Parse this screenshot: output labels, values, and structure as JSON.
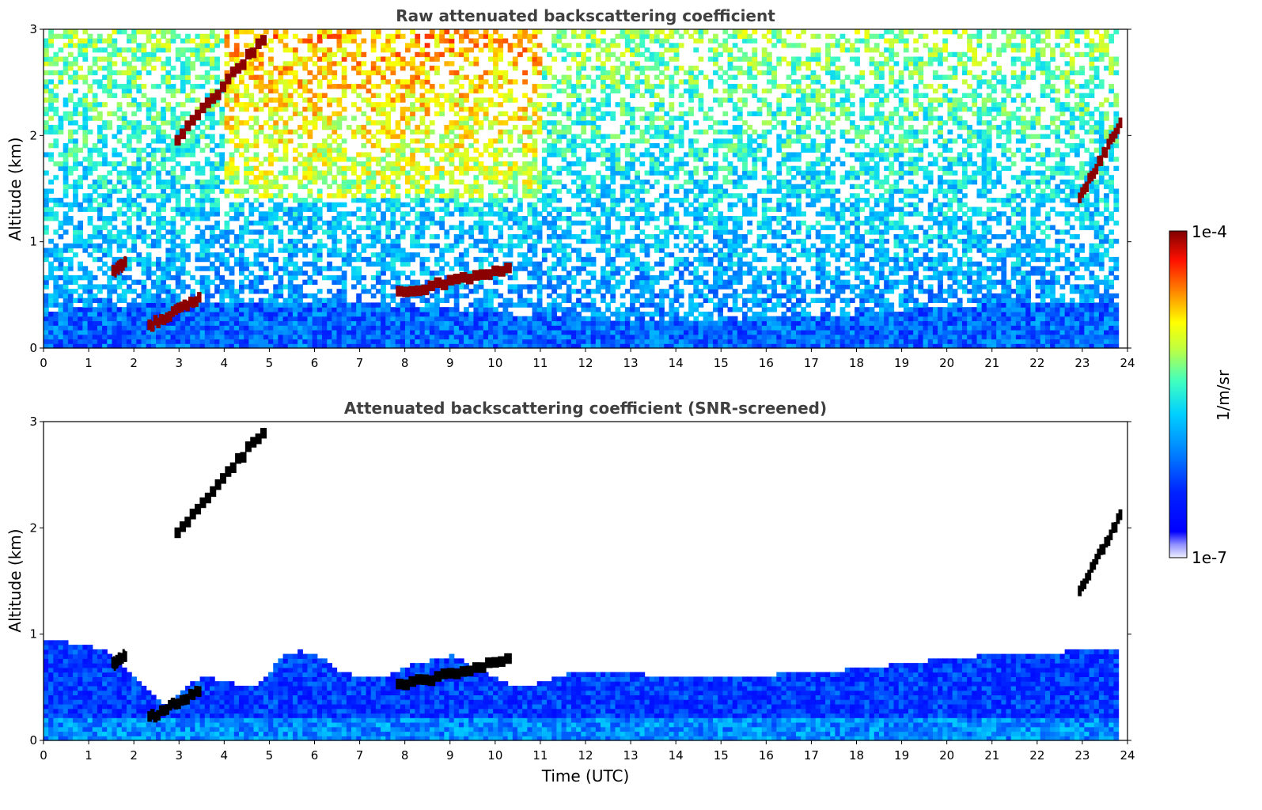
{
  "chart_data": [
    {
      "type": "heatmap",
      "title": "Raw attenuated backscattering coefficient",
      "xlabel": "",
      "ylabel": "Altitude (km)",
      "xlim": [
        0,
        24
      ],
      "ylim": [
        0,
        3
      ],
      "xticks": [
        "0",
        "1",
        "2",
        "3",
        "4",
        "5",
        "6",
        "7",
        "8",
        "9",
        "10",
        "11",
        "12",
        "13",
        "14",
        "15",
        "16",
        "17",
        "18",
        "19",
        "20",
        "21",
        "22",
        "23",
        "24"
      ],
      "yticks": [
        "0",
        "1",
        "2",
        "3"
      ],
      "data_end_hour": 23.8,
      "colorscale": "jet (white-masked low values)",
      "features": [
        {
          "x": [
            2.9,
            4.8
          ],
          "y": [
            1.95,
            2.9
          ]
        },
        {
          "x": [
            1.5,
            1.8
          ],
          "y": [
            0.7,
            0.8
          ]
        },
        {
          "x": [
            2.3,
            3.4
          ],
          "y": [
            0.2,
            0.45
          ]
        },
        {
          "x": [
            7.8,
            10.2
          ],
          "y": [
            0.5,
            0.75
          ]
        },
        {
          "x": [
            22.9,
            23.8
          ],
          "y": [
            1.4,
            2.1
          ]
        }
      ]
    },
    {
      "type": "heatmap",
      "title": "Attenuated backscattering coefficient (SNR-screened)",
      "xlabel": "Time (UTC)",
      "ylabel": "Altitude (km)",
      "xlim": [
        0,
        24
      ],
      "ylim": [
        0,
        3
      ],
      "xticks": [
        "0",
        "1",
        "2",
        "3",
        "4",
        "5",
        "6",
        "7",
        "8",
        "9",
        "10",
        "11",
        "12",
        "13",
        "14",
        "15",
        "16",
        "17",
        "18",
        "19",
        "20",
        "21",
        "22",
        "23",
        "24"
      ],
      "yticks": [
        "0",
        "1",
        "2",
        "3"
      ],
      "data_end_hour": 23.8,
      "boundary_layer_top_km": [
        [
          0,
          0.95
        ],
        [
          0.5,
          0.92
        ],
        [
          1,
          0.88
        ],
        [
          1.3,
          0.85
        ],
        [
          1.6,
          0.75
        ],
        [
          2,
          0.6
        ],
        [
          2.3,
          0.45
        ],
        [
          2.6,
          0.32
        ],
        [
          2.9,
          0.42
        ],
        [
          3.2,
          0.55
        ],
        [
          3.6,
          0.6
        ],
        [
          4,
          0.55
        ],
        [
          4.4,
          0.5
        ],
        [
          4.8,
          0.55
        ],
        [
          5.2,
          0.78
        ],
        [
          5.6,
          0.85
        ],
        [
          6,
          0.8
        ],
        [
          6.5,
          0.65
        ],
        [
          7,
          0.6
        ],
        [
          7.5,
          0.6
        ],
        [
          8,
          0.7
        ],
        [
          8.5,
          0.75
        ],
        [
          9,
          0.8
        ],
        [
          9.5,
          0.68
        ],
        [
          10,
          0.58
        ],
        [
          10.5,
          0.5
        ],
        [
          11,
          0.55
        ],
        [
          11.5,
          0.62
        ],
        [
          12,
          0.65
        ],
        [
          13,
          0.63
        ],
        [
          14,
          0.6
        ],
        [
          15,
          0.6
        ],
        [
          16,
          0.62
        ],
        [
          17,
          0.63
        ],
        [
          18,
          0.68
        ],
        [
          19,
          0.72
        ],
        [
          20,
          0.78
        ],
        [
          21,
          0.8
        ],
        [
          22,
          0.82
        ],
        [
          23,
          0.85
        ],
        [
          23.8,
          0.85
        ]
      ]
    }
  ],
  "colorbar": {
    "label": "1/m/sr",
    "max_label": "1e-4",
    "min_label": "1e-7"
  },
  "colors": {
    "masked": "#ffffff",
    "strong_echo": "#8b0000",
    "screened_strong_echo": "#000000"
  }
}
